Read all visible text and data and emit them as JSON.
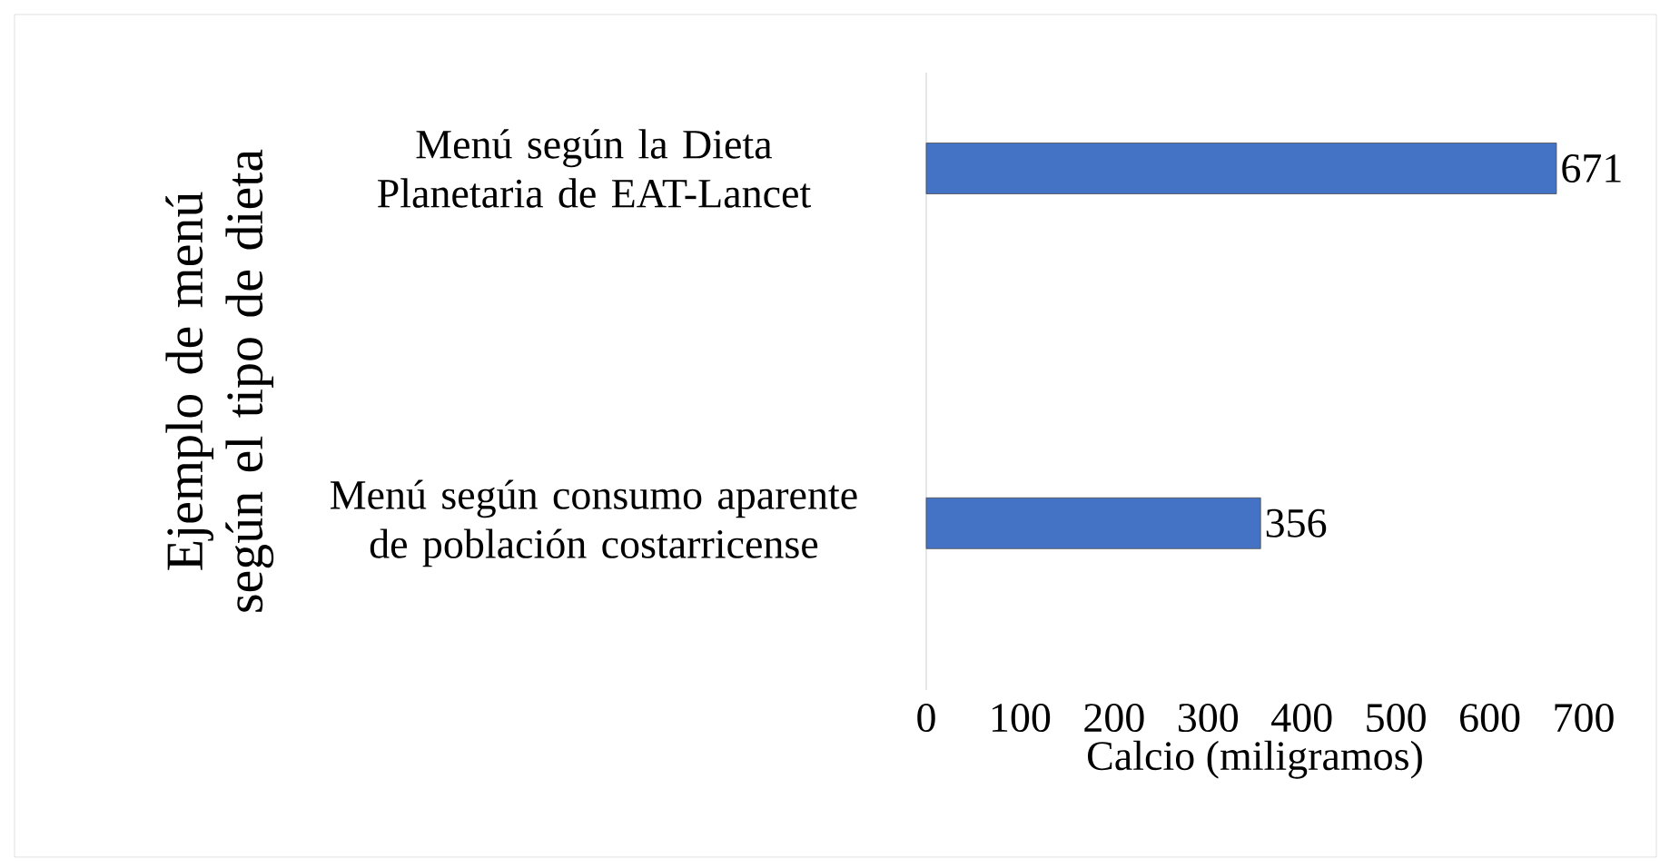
{
  "chart_data": {
    "type": "bar",
    "orientation": "horizontal",
    "categories": [
      "Menú según la Dieta Planetaria de EAT-Lancet",
      "Menú según consumo aparente de población costarricense"
    ],
    "values": [
      671,
      356
    ],
    "color": "#4472c4",
    "data_labels": true,
    "xlim": [
      0,
      700
    ],
    "xticks": [
      0,
      100,
      200,
      300,
      400,
      500,
      600,
      700
    ],
    "xlabel": "Calcio (miligramos)",
    "ylabel": "Ejemplo de menú según el tipo de dieta",
    "grid": false
  }
}
